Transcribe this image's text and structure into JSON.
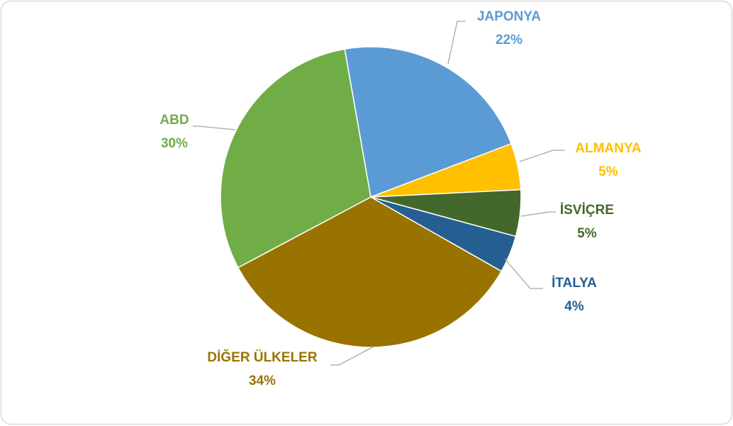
{
  "chart_data": {
    "type": "pie",
    "categories": [
      "JAPONYA",
      "ALMANYA",
      "İSVİÇRE",
      "İTALYA",
      "DİĞER ÜLKELER",
      "ABD"
    ],
    "values": [
      22,
      5,
      5,
      4,
      34,
      30
    ],
    "value_labels": [
      "22%",
      "5%",
      "5%",
      "4%",
      "34%",
      "30%"
    ],
    "colors": [
      "#5b9bd5",
      "#ffc000",
      "#43682b",
      "#255e91",
      "#997300",
      "#70ad47"
    ]
  }
}
